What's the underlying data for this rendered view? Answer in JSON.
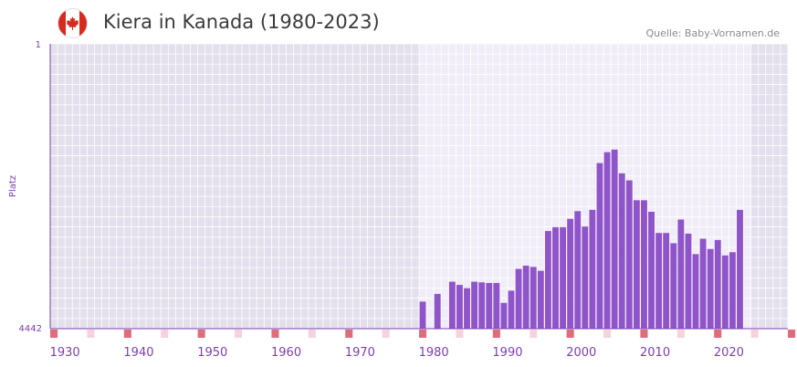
{
  "header": {
    "title": "Kiera in Kanada (1980-2023)",
    "source": "Quelle: Baby-Vornamen.de",
    "flag_icon": "canada-flag-icon"
  },
  "chart_data": {
    "type": "bar",
    "title": "Kiera in Kanada (1980-2023)",
    "xlabel": "",
    "ylabel": "Platz",
    "y_inverted": true,
    "ylim": [
      1,
      4442
    ],
    "y_ticks": [
      "1",
      "4442"
    ],
    "xlim": [
      1928,
      2028
    ],
    "x_ticks": [
      "1930",
      "1940",
      "1950",
      "1960",
      "1970",
      "1980",
      "1990",
      "2000",
      "2010",
      "2020"
    ],
    "highlight_range": [
      1980,
      2023
    ],
    "x": [
      1978,
      1980,
      1982,
      1983,
      1984,
      1985,
      1986,
      1987,
      1988,
      1989,
      1990,
      1991,
      1992,
      1993,
      1994,
      1995,
      1996,
      1997,
      1998,
      1999,
      2000,
      2001,
      2002,
      2003,
      2004,
      2005,
      2006,
      2007,
      2008,
      2009,
      2010,
      2011,
      2012,
      2013,
      2014,
      2015,
      2016,
      2017,
      2018,
      2019,
      2020,
      2021
    ],
    "values": [
      4020,
      3900,
      3710,
      3760,
      3810,
      3710,
      3720,
      3730,
      3730,
      4040,
      3850,
      3510,
      3460,
      3480,
      3540,
      2920,
      2860,
      2860,
      2730,
      2610,
      2850,
      2590,
      1860,
      1690,
      1650,
      2020,
      2130,
      2440,
      2440,
      2620,
      2950,
      2950,
      3110,
      2740,
      2960,
      3280,
      3040,
      3200,
      3060,
      3300,
      3250,
      2590
    ],
    "colors": {
      "bar": "#8f54c9",
      "axis": "#7b3fb0",
      "plot_bg": "#e3dfec",
      "highlight_bg": "#f1edf8",
      "grid": "#ffffff",
      "decade_marker": "#e06b7a",
      "halfdecade_marker": "#f6d3dc",
      "flag_red": "#d52b1e"
    }
  }
}
